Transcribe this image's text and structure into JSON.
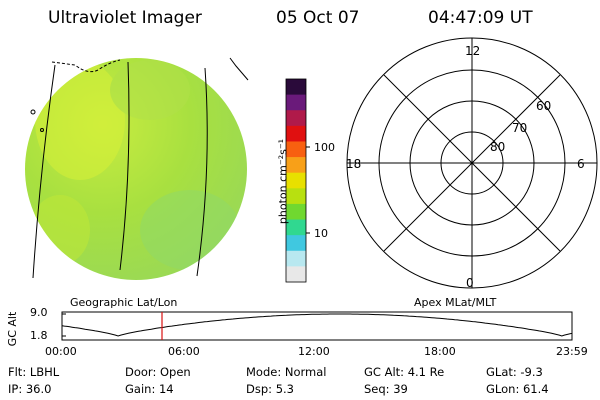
{
  "header": {
    "instrument": "Ultraviolet Imager",
    "date": "05 Oct 07",
    "time": "04:47:09 UT"
  },
  "colorbar": {
    "unit_label": "photon cm⁻²s⁻¹",
    "tick_100": "100",
    "tick_10": "10",
    "colors": [
      "#2a0a3a",
      "#6a1a7a",
      "#b01a4a",
      "#e01010",
      "#f86010",
      "#f8a018",
      "#e8e000",
      "#b8e010",
      "#70d830",
      "#30d890",
      "#40c8e0",
      "#b8e8f0",
      "#e8e8e8"
    ]
  },
  "polar_plot": {
    "lat_labels": [
      "60",
      "70",
      "80"
    ],
    "mlt_labels": {
      "top": "12",
      "left": "18",
      "right": "6",
      "bottom": "0"
    },
    "caption": "Apex MLat/MLT"
  },
  "image_panel": {
    "caption": "Geographic Lat/Lon",
    "disk_colors": [
      "#a8e040",
      "#98d858",
      "#c8ec40",
      "#b8e030"
    ]
  },
  "orbit_plot": {
    "ylabel": "GC Alt",
    "y_ticks": [
      "9.0",
      "1.8"
    ],
    "x_ticks": [
      "00:00",
      "06:00",
      "12:00",
      "18:00",
      "23:59"
    ],
    "current_time_marker_color": "#d81010"
  },
  "status": {
    "row1": [
      {
        "k": "Flt:",
        "v": "LBHL"
      },
      {
        "k": "Door:",
        "v": "Open"
      },
      {
        "k": "Mode:",
        "v": "Normal"
      },
      {
        "k": "GC Alt:",
        "v": "4.1 Re"
      },
      {
        "k": "GLat:",
        "v": "-9.3"
      }
    ],
    "row2": [
      {
        "k": "IP:",
        "v": "36.0"
      },
      {
        "k": "Gain:",
        "v": "14"
      },
      {
        "k": "Dsp:",
        "v": "5.3"
      },
      {
        "k": "Seq:",
        "v": "39"
      },
      {
        "k": "GLon:",
        "v": "61.4"
      }
    ]
  }
}
